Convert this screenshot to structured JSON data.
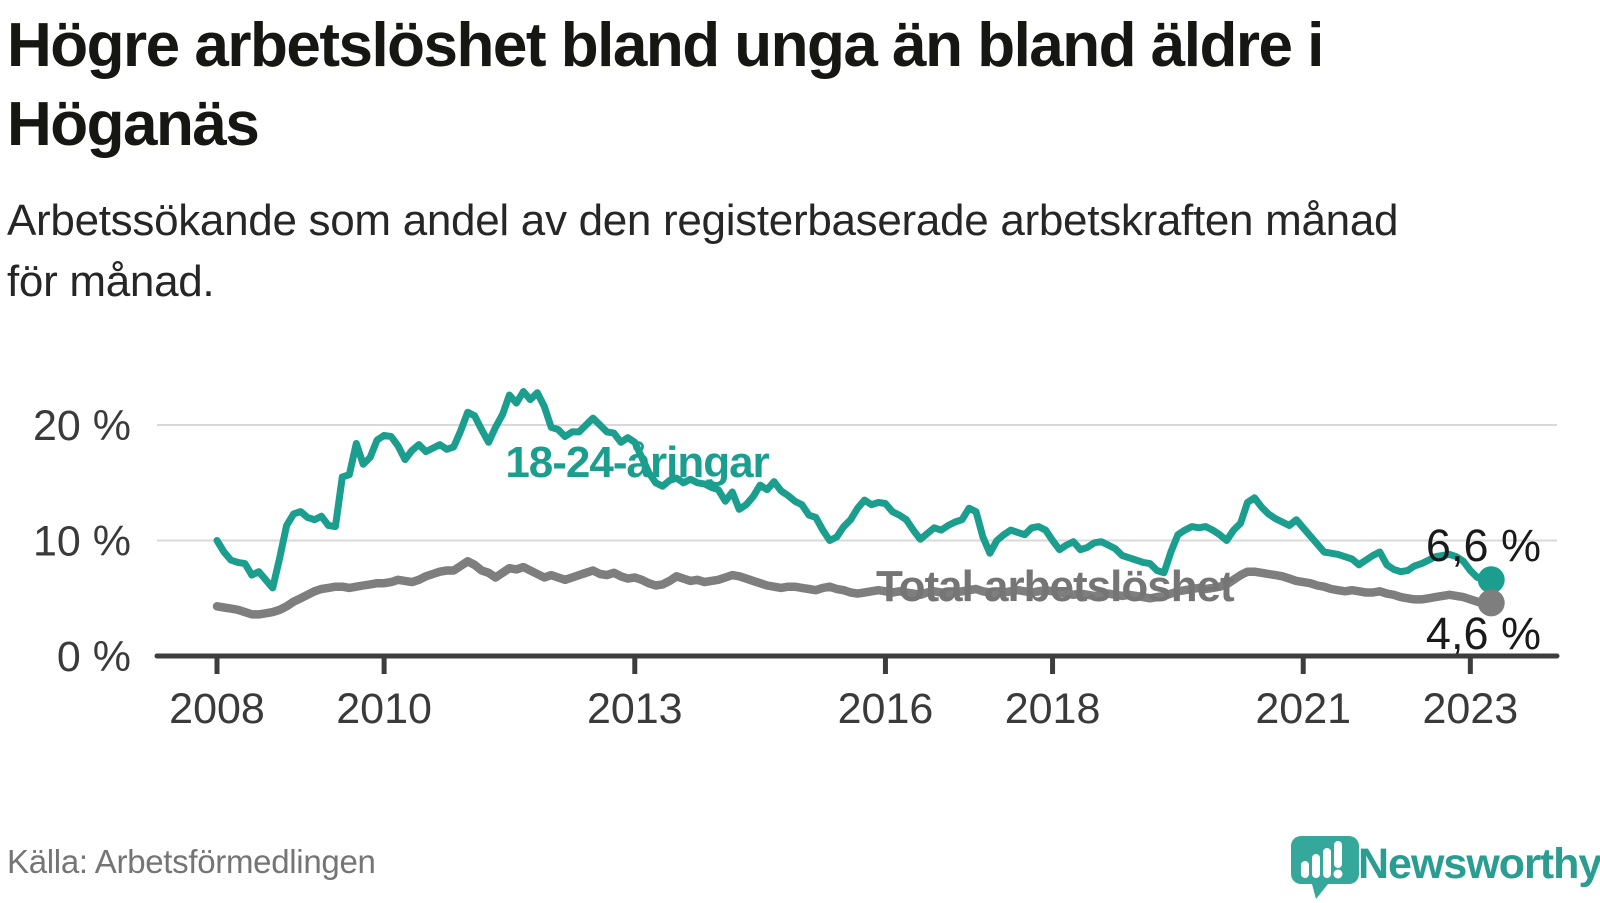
{
  "header": {
    "title": "Högre arbetslöshet bland unga än bland äldre i Höganäs",
    "title_lines": [
      "Högre arbetslöshet bland unga än bland äldre i",
      "Höganäs"
    ],
    "subtitle": "Arbetssökande som andel av den registerbaserade arbetskraften månad för månad.",
    "subtitle_lines": [
      "Arbetssökande som andel av den registerbaserade arbetskraften månad",
      "för månad."
    ]
  },
  "footer": {
    "source": "Källa: Arbetsförmedlingen",
    "logo_text": "Newsworthy"
  },
  "colors": {
    "youth_teal": "#1b9e8e",
    "total_gray": "#7e7e7e",
    "total_label_gray": "#757575",
    "end_label_black": "#1a1a1a",
    "gridline": "#d9d9d9",
    "axis": "#3d3d3d",
    "tick_text": "#3a3a3a",
    "logo_teal": "#35a79b"
  },
  "chart_data": {
    "type": "line",
    "title": "Högre arbetslöshet bland unga än bland äldre i Höganäs",
    "subtitle": "Arbetssökande som andel av den registerbaserade arbetskraften månad för månad.",
    "unit": "percent of registered labour force",
    "x_frequency": "monthly",
    "x_start": "2008-01",
    "x_end": "2023-04",
    "x_tick_years": [
      2008,
      2010,
      2013,
      2016,
      2018,
      2021,
      2023
    ],
    "x_tick_labels": [
      "2008",
      "2010",
      "2013",
      "2016",
      "2018",
      "2021",
      "2023"
    ],
    "y_tick_values": [
      0,
      10,
      20
    ],
    "y_tick_labels": [
      "0 %",
      "10 %",
      "20 %"
    ],
    "ylim": [
      0,
      24
    ],
    "grid": "horizontal",
    "legend_position": "inline-labels",
    "series": [
      {
        "name": "18-24-åringar",
        "color": "#1b9e8e",
        "end_label": "6,6 %",
        "last_value": 6.6,
        "values": [
          10.0,
          9.0,
          8.3,
          8.1,
          8.0,
          7.0,
          7.3,
          6.6,
          5.9,
          8.5,
          11.3,
          12.3,
          12.5,
          12.0,
          11.8,
          12.1,
          11.3,
          11.2,
          15.5,
          15.7,
          18.4,
          16.6,
          17.2,
          18.7,
          19.1,
          19.0,
          18.2,
          17.0,
          17.8,
          18.3,
          17.7,
          18.0,
          18.3,
          17.9,
          18.1,
          19.5,
          21.1,
          20.8,
          19.6,
          18.5,
          19.8,
          20.9,
          22.6,
          21.9,
          22.9,
          22.2,
          22.8,
          21.6,
          19.8,
          19.6,
          19.0,
          19.4,
          19.4,
          20.0,
          20.6,
          20.0,
          19.4,
          19.3,
          18.5,
          18.9,
          18.5,
          17.2,
          15.9,
          15.0,
          14.7,
          15.2,
          15.4,
          15.0,
          15.3,
          15.0,
          14.9,
          14.6,
          14.4,
          13.4,
          14.2,
          12.7,
          13.1,
          13.8,
          14.8,
          14.4,
          15.1,
          14.3,
          13.9,
          13.4,
          13.1,
          12.2,
          12.0,
          10.9,
          10.0,
          10.3,
          11.2,
          11.8,
          12.8,
          13.5,
          13.1,
          13.3,
          13.2,
          12.5,
          12.2,
          11.8,
          10.9,
          10.1,
          10.6,
          11.1,
          10.9,
          11.3,
          11.6,
          11.8,
          12.8,
          12.5,
          10.3,
          8.9,
          10.0,
          10.5,
          10.9,
          10.7,
          10.5,
          11.1,
          11.2,
          10.9,
          10.0,
          9.2,
          9.6,
          9.9,
          9.2,
          9.4,
          9.8,
          9.9,
          9.6,
          9.3,
          8.7,
          8.5,
          8.3,
          8.1,
          8.0,
          7.4,
          7.2,
          9.0,
          10.5,
          10.9,
          11.2,
          11.1,
          11.2,
          10.9,
          10.5,
          10.0,
          10.9,
          11.5,
          13.3,
          13.7,
          12.9,
          12.3,
          11.9,
          11.6,
          11.3,
          11.8,
          11.1,
          10.4,
          9.7,
          9.0,
          8.9,
          8.8,
          8.6,
          8.4,
          7.9,
          8.3,
          8.7,
          9.0,
          7.9,
          7.5,
          7.3,
          7.4,
          7.8,
          8.0,
          8.3,
          8.6,
          8.7,
          8.8,
          8.6,
          8.2,
          7.4,
          6.8,
          6.9,
          6.6
        ]
      },
      {
        "name": "Total arbetslöshet",
        "color": "#7e7e7e",
        "end_label": "4,6 %",
        "last_value": 4.6,
        "values": [
          4.3,
          4.2,
          4.1,
          4.0,
          3.8,
          3.6,
          3.6,
          3.7,
          3.8,
          4.0,
          4.3,
          4.7,
          5.0,
          5.3,
          5.6,
          5.8,
          5.9,
          6.0,
          6.0,
          5.9,
          6.0,
          6.1,
          6.2,
          6.3,
          6.3,
          6.4,
          6.6,
          6.5,
          6.4,
          6.6,
          6.9,
          7.1,
          7.3,
          7.4,
          7.4,
          7.8,
          8.2,
          7.9,
          7.4,
          7.2,
          6.8,
          7.2,
          7.6,
          7.5,
          7.7,
          7.4,
          7.1,
          6.8,
          7.0,
          6.8,
          6.6,
          6.8,
          7.0,
          7.2,
          7.4,
          7.1,
          7.0,
          7.2,
          6.9,
          6.7,
          6.8,
          6.6,
          6.3,
          6.1,
          6.2,
          6.5,
          6.9,
          6.7,
          6.5,
          6.6,
          6.4,
          6.5,
          6.6,
          6.8,
          7.0,
          6.9,
          6.7,
          6.5,
          6.3,
          6.1,
          6.0,
          5.9,
          6.0,
          6.0,
          5.9,
          5.8,
          5.7,
          5.9,
          6.0,
          5.8,
          5.7,
          5.5,
          5.4,
          5.5,
          5.6,
          5.7,
          5.6,
          5.5,
          5.6,
          5.5,
          5.4,
          5.3,
          5.5,
          5.6,
          5.5,
          5.4,
          5.5,
          5.6,
          5.7,
          5.8,
          5.6,
          5.5,
          5.4,
          5.5,
          5.6,
          5.7,
          5.6,
          5.5,
          5.6,
          5.7,
          5.6,
          5.5,
          5.4,
          5.3,
          5.4,
          5.3,
          5.2,
          5.3,
          5.4,
          5.3,
          5.2,
          5.3,
          5.2,
          5.1,
          5.0,
          5.1,
          5.2,
          5.4,
          5.6,
          5.7,
          5.8,
          5.9,
          5.8,
          5.9,
          6.0,
          6.2,
          6.6,
          7.0,
          7.3,
          7.3,
          7.2,
          7.1,
          7.0,
          6.9,
          6.7,
          6.5,
          6.4,
          6.3,
          6.1,
          6.0,
          5.8,
          5.7,
          5.6,
          5.7,
          5.6,
          5.5,
          5.5,
          5.6,
          5.4,
          5.3,
          5.1,
          5.0,
          4.9,
          4.9,
          5.0,
          5.1,
          5.2,
          5.3,
          5.2,
          5.1,
          4.9,
          4.7,
          4.5,
          4.6
        ]
      }
    ]
  }
}
